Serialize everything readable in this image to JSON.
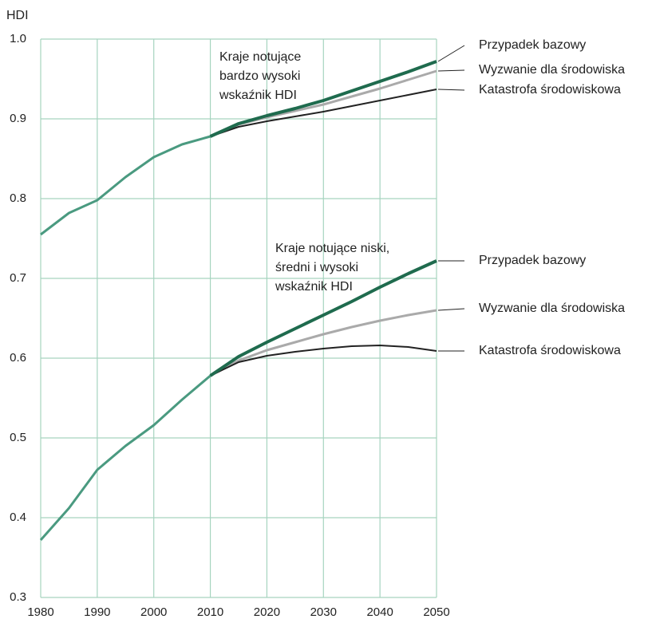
{
  "chart_data": {
    "type": "line",
    "ylabel": "HDI",
    "x": [
      1980,
      1985,
      1990,
      1995,
      2000,
      2005,
      2010,
      2015,
      2020,
      2025,
      2030,
      2035,
      2040,
      2045,
      2050
    ],
    "xlim": [
      1980,
      2050
    ],
    "xticks": [
      1980,
      1990,
      2000,
      2010,
      2020,
      2030,
      2040,
      2050
    ],
    "ylim": [
      0.3,
      1.0
    ],
    "yticks": [
      0.3,
      0.4,
      0.5,
      0.6,
      0.7,
      0.8,
      0.9,
      {
        "value": 1.0,
        "label": "1.0"
      }
    ],
    "grid": true,
    "annotations": [
      {
        "lines": [
          "Kraje notujące",
          "bardzo wysoki",
          "wskaźnik HDI"
        ]
      },
      {
        "lines": [
          "Kraje notujące niski,",
          "średni i wysoki",
          "wskaźnik HDI"
        ]
      }
    ],
    "series": [
      {
        "color": "#4a9a80",
        "values": [
          0.755,
          0.782,
          0.798,
          0.827,
          0.852,
          0.868,
          0.878,
          null,
          null,
          null,
          null,
          null,
          null,
          null,
          null
        ]
      },
      {
        "color": "#4a9a80",
        "values": [
          0.372,
          0.412,
          0.46,
          0.49,
          0.516,
          0.548,
          0.578,
          null,
          null,
          null,
          null,
          null,
          null,
          null,
          null
        ]
      },
      {
        "name": "Wyzwanie dla środowiska",
        "color": "#aaaaaa",
        "values": [
          null,
          null,
          null,
          null,
          null,
          null,
          0.878,
          0.893,
          0.902,
          0.91,
          0.918,
          0.928,
          0.938,
          0.949,
          0.96
        ]
      },
      {
        "name": "Katastrofa środowiskowa",
        "color": "#222222",
        "values": [
          null,
          null,
          null,
          null,
          null,
          null,
          0.878,
          0.89,
          0.897,
          0.903,
          0.909,
          0.916,
          0.923,
          0.93,
          0.937
        ]
      },
      {
        "name": "Przypadek bazowy",
        "color": "#1f6b4e",
        "values": [
          null,
          null,
          null,
          null,
          null,
          null,
          0.878,
          0.894,
          0.904,
          0.913,
          0.923,
          0.935,
          0.947,
          0.959,
          0.972
        ]
      },
      {
        "name": "Wyzwanie dla środowiska",
        "color": "#aaaaaa",
        "values": [
          null,
          null,
          null,
          null,
          null,
          null,
          0.578,
          0.597,
          0.61,
          0.62,
          0.63,
          0.639,
          0.647,
          0.654,
          0.66
        ]
      },
      {
        "name": "Katastrofa środowiskowa",
        "color": "#222222",
        "values": [
          null,
          null,
          null,
          null,
          null,
          null,
          0.578,
          0.595,
          0.603,
          0.608,
          0.612,
          0.615,
          0.616,
          0.614,
          0.609
        ]
      },
      {
        "name": "Przypadek bazowy",
        "color": "#1f6b4e",
        "values": [
          null,
          null,
          null,
          null,
          null,
          null,
          0.578,
          0.602,
          0.62,
          0.637,
          0.654,
          0.671,
          0.689,
          0.706,
          0.722
        ]
      }
    ]
  }
}
